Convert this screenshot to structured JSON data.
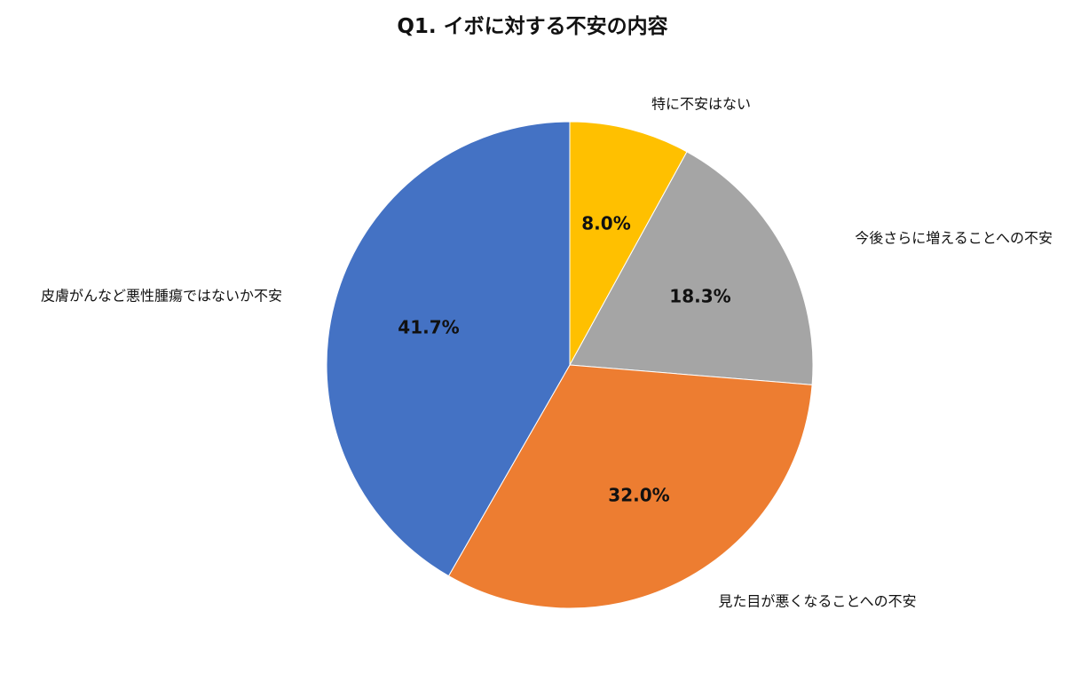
{
  "chart_data": {
    "type": "pie",
    "title": "Q1. イボに対する不安の内容",
    "categories": [
      "特に不安はない",
      "今後さらに増えることへの不安",
      "見た目が悪くなることへの不安",
      "皮膚がんなど悪性腫瘍ではないか不安"
    ],
    "values": [
      8.0,
      18.3,
      32.0,
      41.7
    ],
    "value_labels": [
      "8.0%",
      "18.3%",
      "32.0%",
      "41.7%"
    ],
    "colors": [
      "#FFC000",
      "#A5A5A5",
      "#ED7D31",
      "#4472C4"
    ],
    "start_angle": "12 o'clock",
    "direction": "clockwise",
    "legend": "none"
  }
}
